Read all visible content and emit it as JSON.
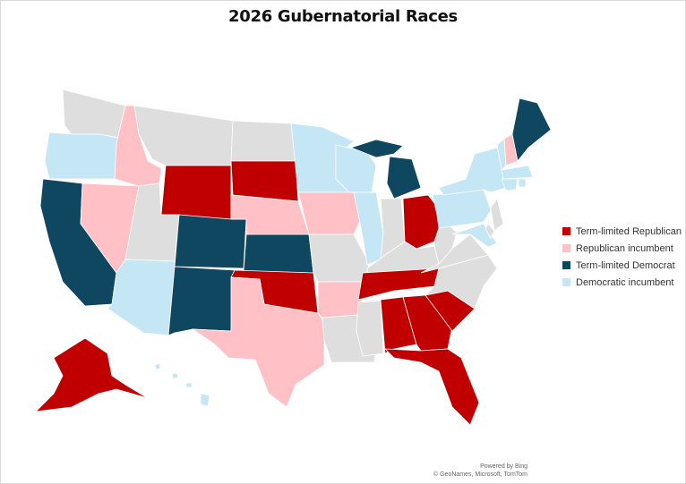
{
  "title": "2026 Gubernatorial Races",
  "legend": [
    {
      "label": "Term-limited Republican",
      "color": "#C00000"
    },
    {
      "label": "Republican incumbent",
      "color": "#FFC1C5"
    },
    {
      "label": "Term-limited Democrat",
      "color": "#0F4761"
    },
    {
      "label": "Democratic incumbent",
      "color": "#C5E6F4"
    }
  ],
  "no_race_color": "#DEDEDE",
  "states": {
    "WA": -1,
    "OR": 3,
    "CA": 2,
    "NV": 1,
    "ID": 1,
    "MT": -1,
    "WY": 0,
    "UT": -1,
    "CO": 2,
    "AZ": 3,
    "NM": 2,
    "ND": -1,
    "SD": 0,
    "NE": 1,
    "KS": 2,
    "OK": 0,
    "TX": 1,
    "MN": 3,
    "IA": 1,
    "MO": -1,
    "AR": 1,
    "LA": -1,
    "WI": 3,
    "IL": 3,
    "MI": 2,
    "IN": -1,
    "OH": 0,
    "KY": -1,
    "TN": 0,
    "MS": -1,
    "AL": 0,
    "GA": 0,
    "FL": 0,
    "SC": 0,
    "NC": -1,
    "VA": -1,
    "WV": -1,
    "PA": 3,
    "NY": 3,
    "MD": 3,
    "NJ": -1,
    "DE": -1,
    "VT": 3,
    "NH": 1,
    "ME": 2,
    "MA": 3,
    "CT": 3,
    "RI": 3,
    "AK": 0,
    "HI": 3
  },
  "attribution": {
    "line1": "Powered by Bing",
    "line2": "© GeoNames, Microsoft, TomTom"
  }
}
